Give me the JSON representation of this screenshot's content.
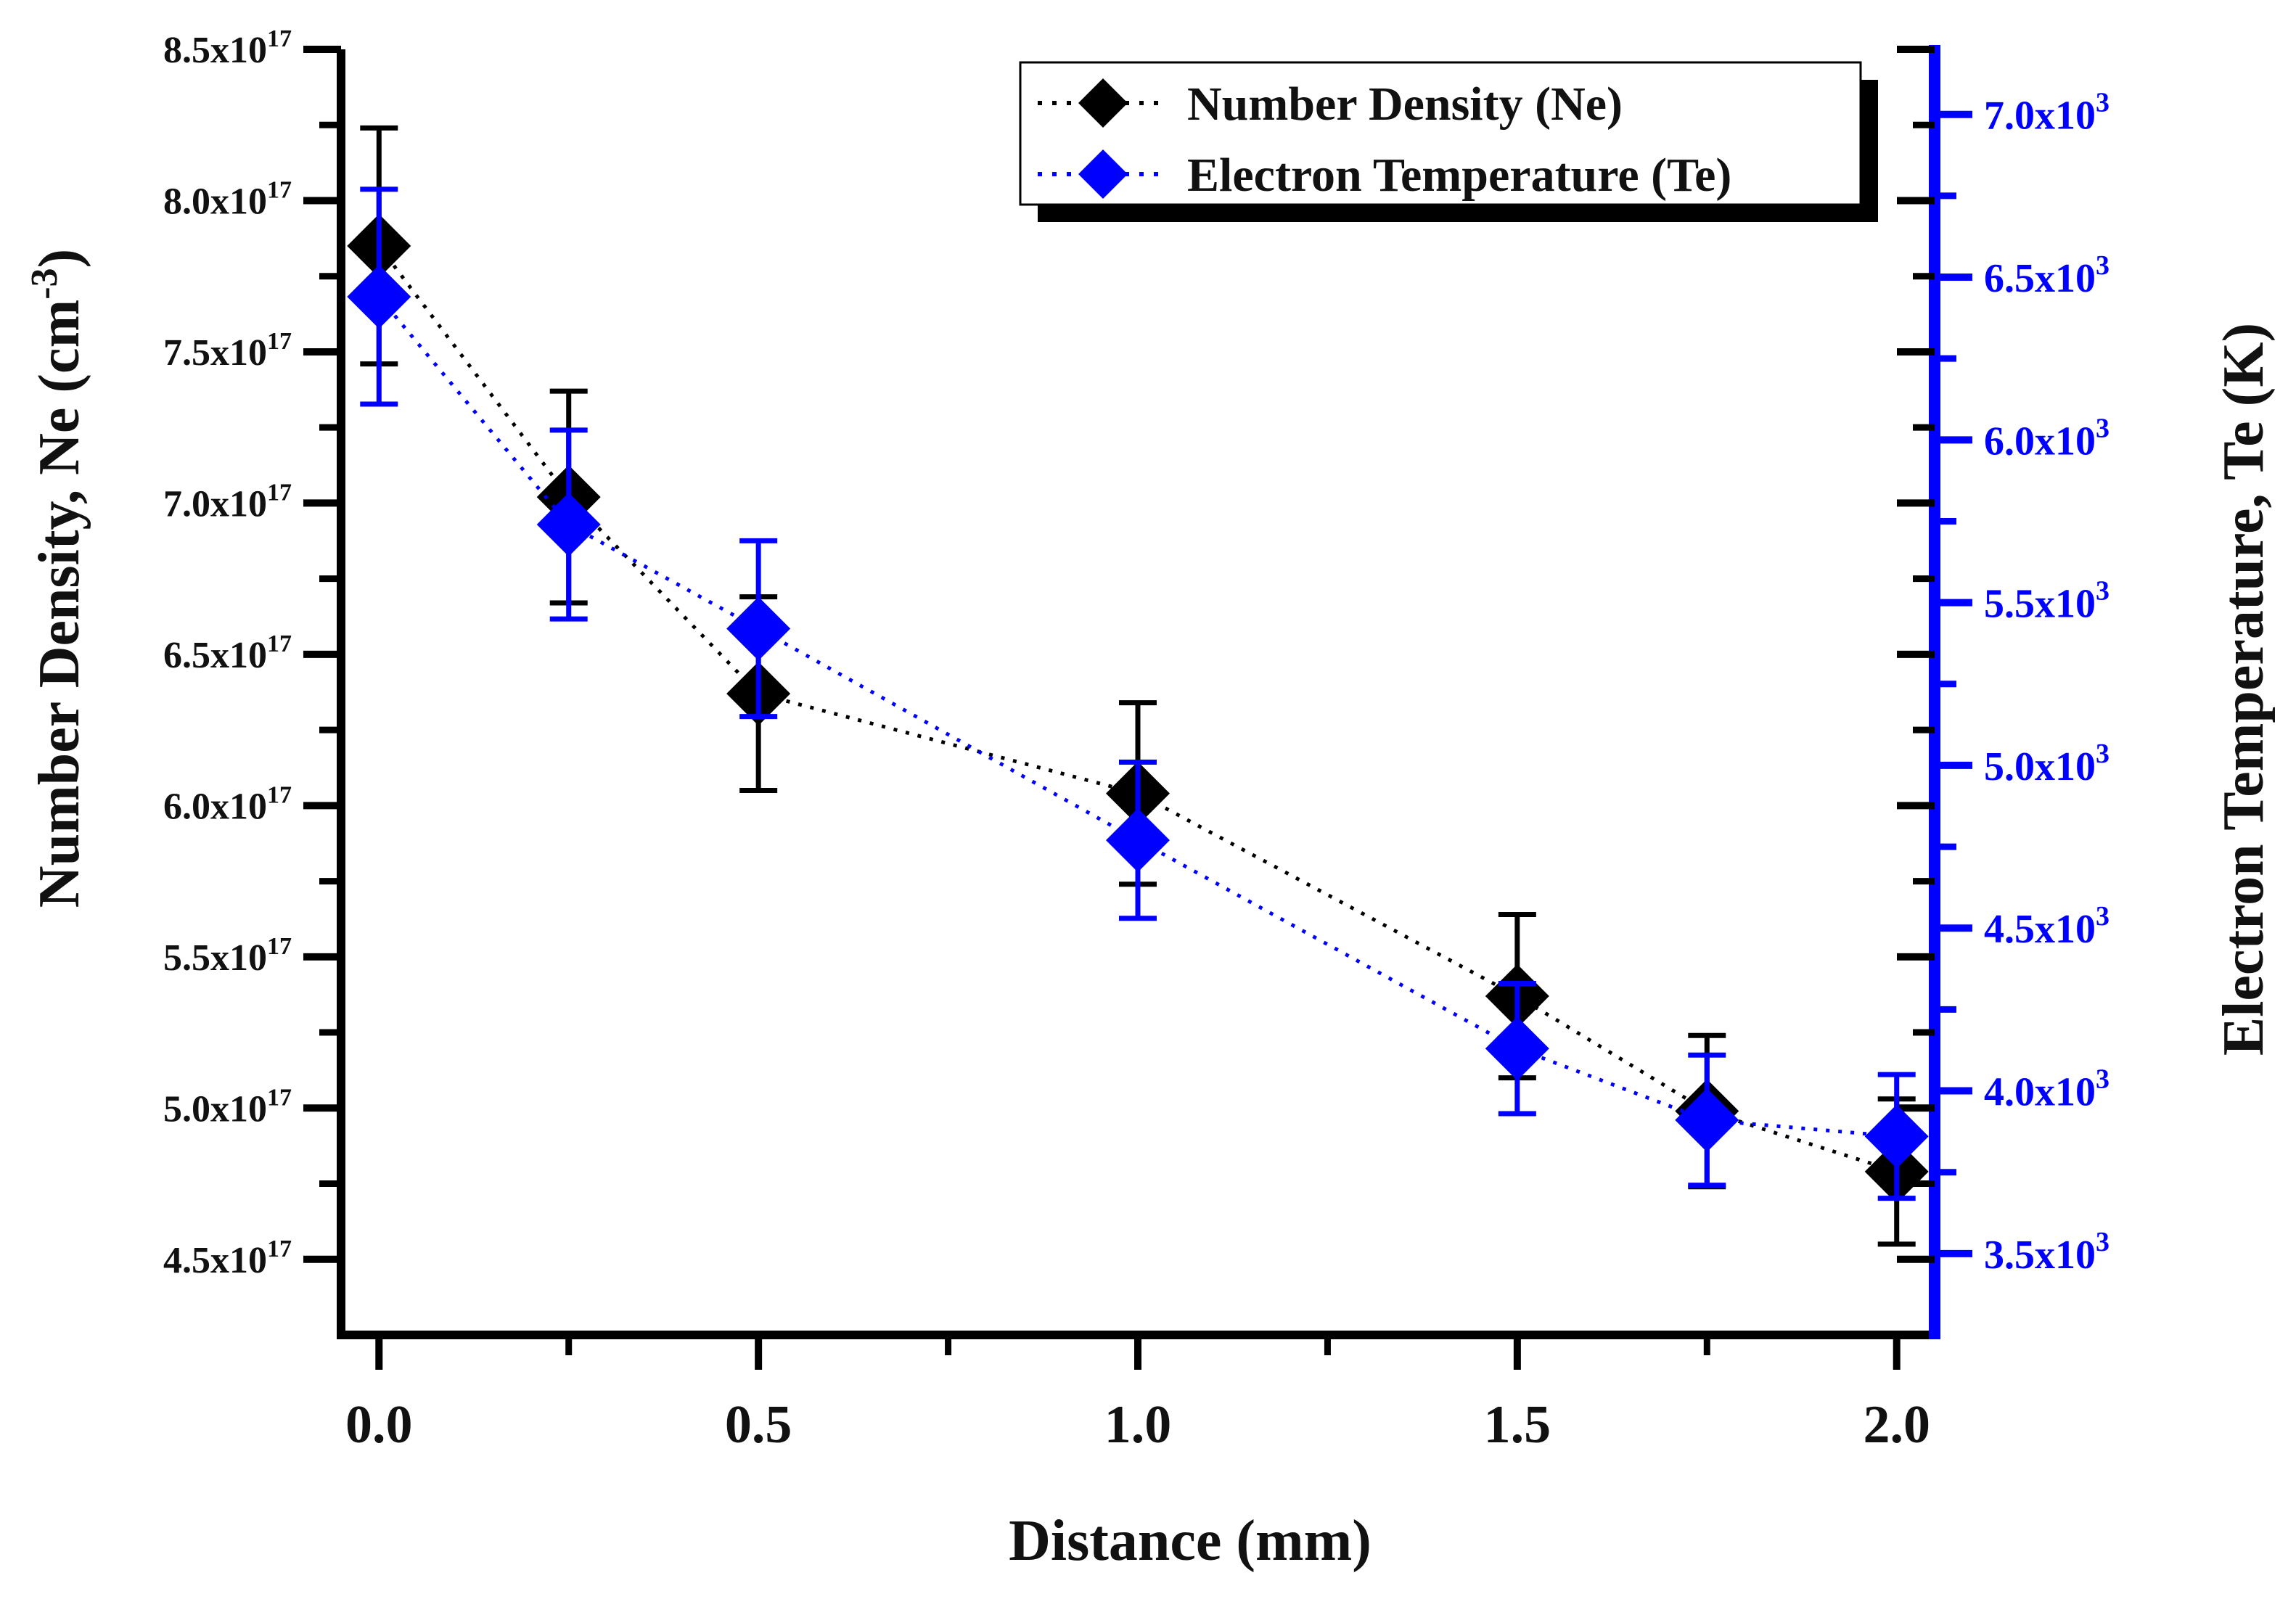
{
  "chart_data": {
    "type": "scatter",
    "xlabel": "Distance (mm)",
    "ylabel_left": {
      "main": "Number Density, Ne (cm",
      "sup": "-3",
      "end": ")"
    },
    "ylabel_right": "Electron Temperature, Te (K)",
    "xlim": [
      -0.05,
      2.05
    ],
    "ylim_left": [
      4.25e+17,
      8.5e+17
    ],
    "ylim_right": [
      3250.0,
      7200.0
    ],
    "x_ticks": [
      {
        "value": 0.0,
        "label": "0.0"
      },
      {
        "value": 0.5,
        "label": "0.5"
      },
      {
        "value": 1.0,
        "label": "1.0"
      },
      {
        "value": 1.5,
        "label": "1.5"
      },
      {
        "value": 2.0,
        "label": "2.0"
      }
    ],
    "x_minor_ticks": [
      0.25,
      0.75,
      1.25,
      1.75
    ],
    "y_left_ticks": [
      {
        "value": 4.5e+17,
        "base": "4.5x10",
        "exp": "17"
      },
      {
        "value": 5e+17,
        "base": "5.0x10",
        "exp": "17"
      },
      {
        "value": 5.5e+17,
        "base": "5.5x10",
        "exp": "17"
      },
      {
        "value": 6e+17,
        "base": "6.0x10",
        "exp": "17"
      },
      {
        "value": 6.5e+17,
        "base": "6.5x10",
        "exp": "17"
      },
      {
        "value": 7e+17,
        "base": "7.0x10",
        "exp": "17"
      },
      {
        "value": 7.5e+17,
        "base": "7.5x10",
        "exp": "17"
      },
      {
        "value": 8e+17,
        "base": "8.0x10",
        "exp": "17"
      },
      {
        "value": 8.5e+17,
        "base": "8.5x10",
        "exp": "17"
      }
    ],
    "y_left_minor_ticks": [
      4.75e+17,
      5.25e+17,
      5.75e+17,
      6.25e+17,
      6.75e+17,
      7.25e+17,
      7.75e+17,
      8.25e+17
    ],
    "y_right_ticks": [
      {
        "value": 3500,
        "base": "3.5x10",
        "exp": "3"
      },
      {
        "value": 4000,
        "base": "4.0x10",
        "exp": "3"
      },
      {
        "value": 4500,
        "base": "4.5x10",
        "exp": "3"
      },
      {
        "value": 5000,
        "base": "5.0x10",
        "exp": "3"
      },
      {
        "value": 5500,
        "base": "5.5x10",
        "exp": "3"
      },
      {
        "value": 6000,
        "base": "6.0x10",
        "exp": "3"
      },
      {
        "value": 6500,
        "base": "6.5x10",
        "exp": "3"
      },
      {
        "value": 7000,
        "base": "7.0x10",
        "exp": "3"
      }
    ],
    "y_right_minor_ticks": [
      3750,
      4250,
      4750,
      5250,
      5750,
      6250,
      6750
    ],
    "series": [
      {
        "name": "Number Density (Ne)",
        "axis": "left",
        "color": "#000000",
        "x": [
          0.0,
          0.25,
          0.5,
          1.0,
          1.5,
          1.75,
          2.0
        ],
        "y": [
          7.85e+17,
          7.02e+17,
          6.37e+17,
          6.04e+17,
          5.37e+17,
          4.99e+17,
          4.79e+17
        ],
        "err": [
          3.9e+16,
          3.5e+16,
          3.2e+16,
          3e+16,
          2.7e+16,
          2.5e+16,
          2.4e+16
        ]
      },
      {
        "name": "Electron Temperature (Te)",
        "axis": "right",
        "color": "#0000ff",
        "x": [
          0.0,
          0.25,
          0.5,
          1.0,
          1.5,
          1.75,
          2.0
        ],
        "y": [
          6440,
          5740,
          5420,
          4770,
          4130,
          3910,
          3860
        ],
        "err": [
          330,
          290,
          270,
          240,
          200,
          200,
          190
        ]
      }
    ],
    "legend_position": "top-right"
  }
}
